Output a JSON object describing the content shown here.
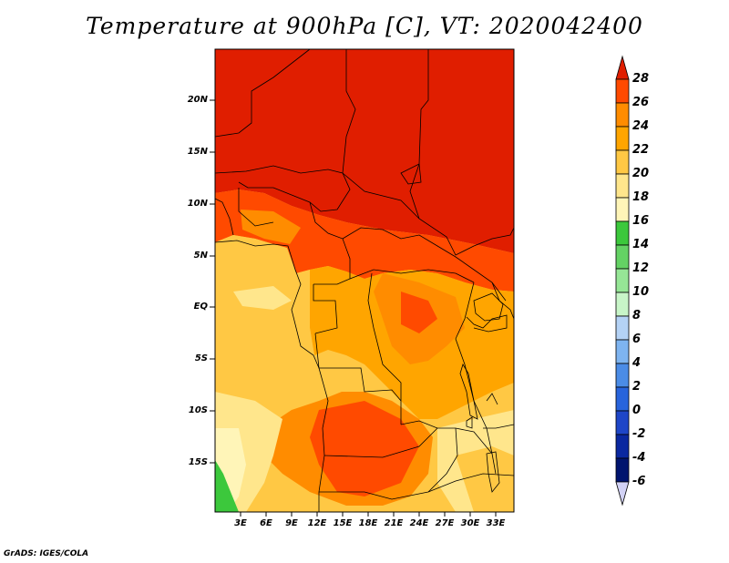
{
  "title": "Temperature at 900hPa [C], VT: 2020042400",
  "footer": "GrADS: IGES/COLA",
  "map": {
    "lat_labels": [
      "20N",
      "15N",
      "10N",
      "5N",
      "EQ",
      "5S",
      "10S",
      "15S"
    ],
    "lon_labels": [
      "3E",
      "6E",
      "9E",
      "12E",
      "15E",
      "18E",
      "21E",
      "24E",
      "27E",
      "30E",
      "33E"
    ]
  },
  "colorbar": {
    "labels": [
      "28",
      "26",
      "24",
      "22",
      "20",
      "18",
      "16",
      "14",
      "12",
      "10",
      "8",
      "6",
      "4",
      "2",
      "0",
      "-2",
      "-4",
      "-6"
    ],
    "colors": [
      "#e01e00",
      "#ff4a00",
      "#ff8c00",
      "#ffa500",
      "#ffc844",
      "#ffe68c",
      "#fff5b8",
      "#3cc83c",
      "#64d264",
      "#96e696",
      "#c8f5c8",
      "#b4d2f5",
      "#7eb4f0",
      "#4b8ce6",
      "#2864dc",
      "#1e46c8",
      "#0a28a0",
      "#00146e",
      "#d2d2f5"
    ],
    "top_arrow_color": "#e01e00",
    "bottom_arrow_color": "#d2d2f5"
  }
}
